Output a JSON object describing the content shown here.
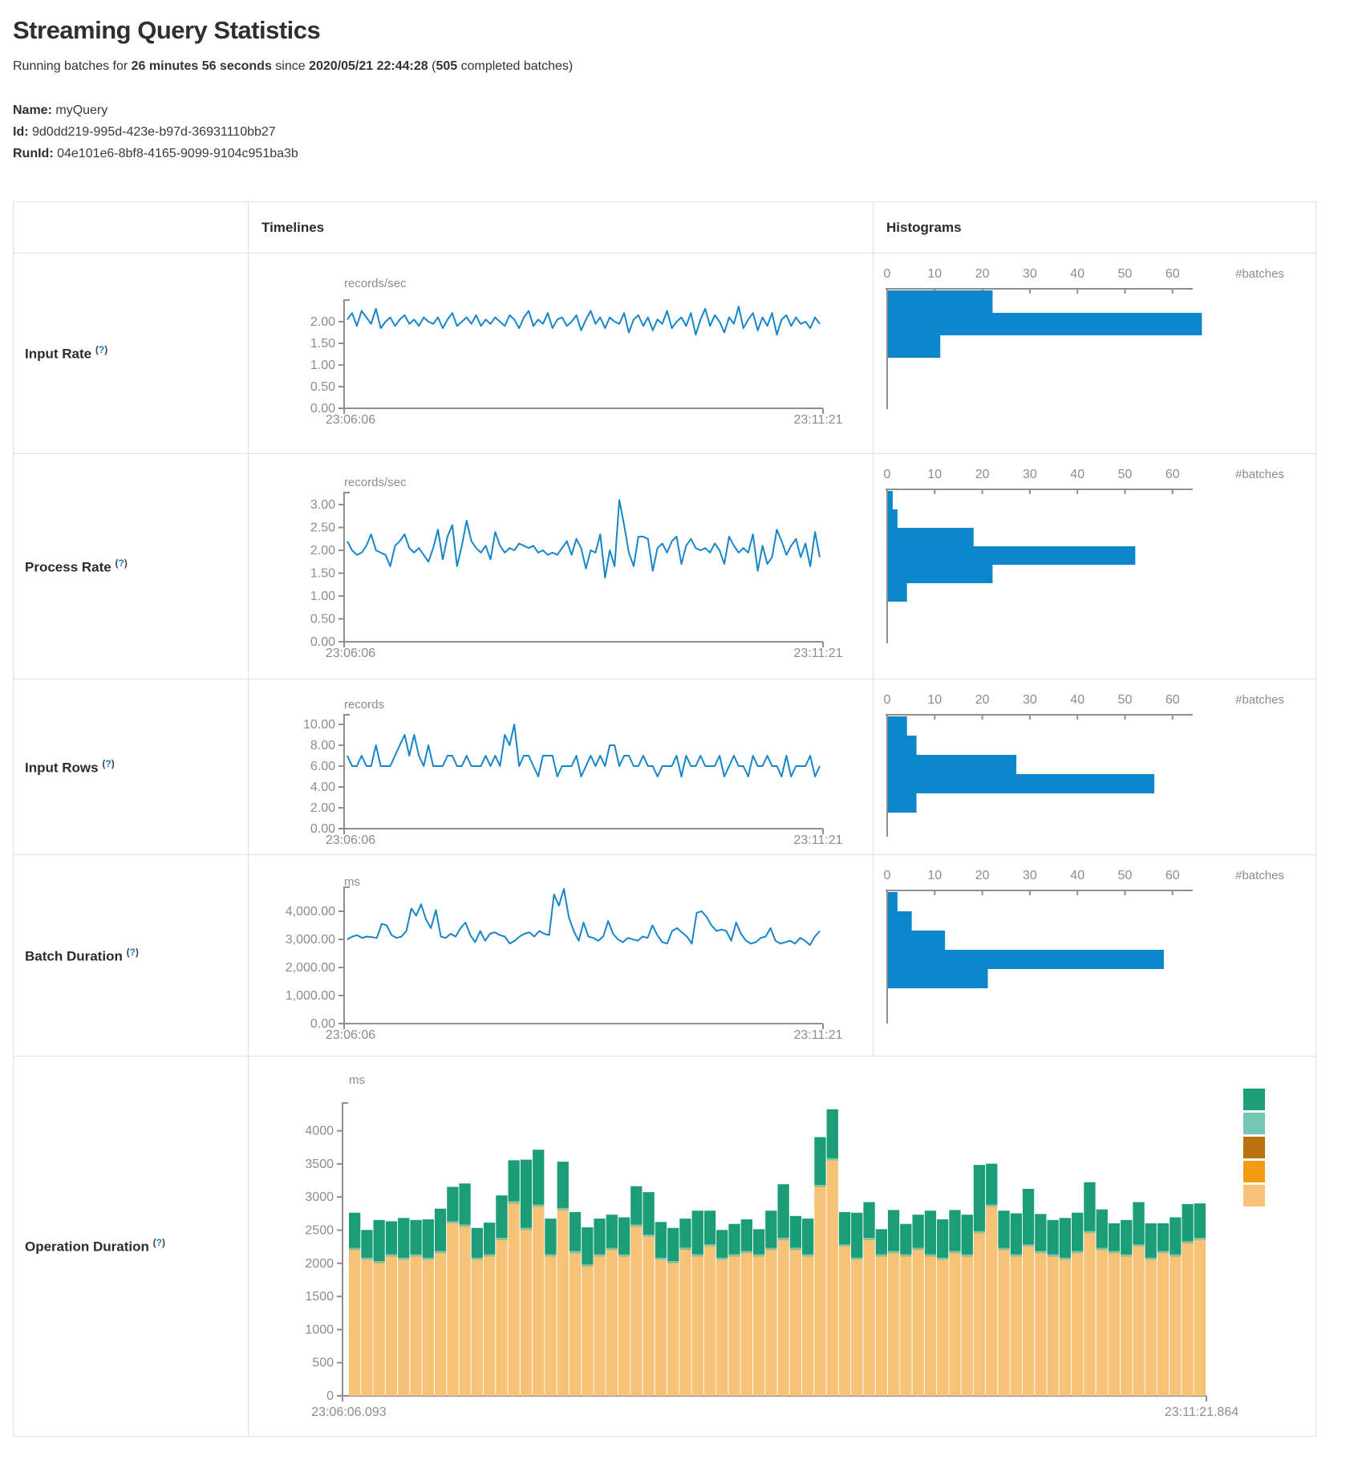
{
  "page": {
    "title": "Streaming Query Statistics",
    "subtitle": {
      "t1": "Running batches for ",
      "b1": "26 minutes 56 seconds",
      "t2": " since ",
      "b2": "2020/05/21 22:44:28",
      "t3": " (",
      "b3": "505",
      "t4": " completed batches)"
    },
    "meta": {
      "name_label": "Name:",
      "name_value": "myQuery",
      "id_label": "Id:",
      "id_value": "9d0dd219-995d-423e-b97d-36931110bb27",
      "runid_label": "RunId:",
      "runid_value": "04e101e6-8bf8-4165-9099-9104c951ba3b"
    }
  },
  "table": {
    "header": {
      "timelines": "Timelines",
      "histograms": "Histograms"
    },
    "help": {
      "open": "(",
      "q": "?",
      "close": ")"
    },
    "rows": [
      {
        "label": "Input Rate"
      },
      {
        "label": "Process Rate"
      },
      {
        "label": "Input Rows"
      },
      {
        "label": "Batch Duration"
      },
      {
        "label": "Operation Duration"
      }
    ]
  },
  "colors": {
    "line_blue": "#1786c9",
    "hist_blue": "#0d87cc",
    "axis_gray": "#8f8f8f",
    "tick_text": "#8c8c8c",
    "teal_green": "#1b9e77",
    "light_teal": "#74c7b4",
    "dark_orange": "#b8720d",
    "orange": "#f39c12",
    "tan": "#f6c277"
  },
  "chart_data": [
    {
      "id": "input-rate-timeline",
      "type": "line",
      "title": "Input Rate",
      "unit": "records/sec",
      "color": "#1786c9",
      "x_start_label": "23:06:06",
      "x_end_label": "23:11:21",
      "ylim": [
        0,
        2.5
      ],
      "yticks": [
        {
          "v": 2.0,
          "label": "2.00"
        },
        {
          "v": 1.5,
          "label": "1.50"
        },
        {
          "v": 1.0,
          "label": "1.00"
        },
        {
          "v": 0.5,
          "label": "0.50"
        },
        {
          "v": 0.0,
          "label": "0.00"
        }
      ],
      "values": [
        2.05,
        2.2,
        1.9,
        2.25,
        2.1,
        1.95,
        2.3,
        1.85,
        2.0,
        2.1,
        1.9,
        2.05,
        2.15,
        1.95,
        2.05,
        1.9,
        2.1,
        2.0,
        1.95,
        2.1,
        1.85,
        2.05,
        2.2,
        1.9,
        2.0,
        2.1,
        1.95,
        2.15,
        1.9,
        2.05,
        1.95,
        2.1,
        2.0,
        1.9,
        2.15,
        2.05,
        1.85,
        2.1,
        2.25,
        1.9,
        2.05,
        1.95,
        2.2,
        1.85,
        2.05,
        2.1,
        1.9,
        2.0,
        2.15,
        1.8,
        2.05,
        2.25,
        1.95,
        2.1,
        1.85,
        2.1,
        2.0,
        1.95,
        2.2,
        1.75,
        2.05,
        2.15,
        1.9,
        2.1,
        1.8,
        2.05,
        1.95,
        2.25,
        1.85,
        2.0,
        2.1,
        1.9,
        2.2,
        1.7,
        2.05,
        2.3,
        1.9,
        2.15,
        2.0,
        1.75,
        2.1,
        1.95,
        2.35,
        1.85,
        2.05,
        2.2,
        1.8,
        2.1,
        1.9,
        2.2,
        1.7,
        2.05,
        2.15,
        1.9,
        2.1,
        1.95,
        2.0,
        1.85,
        2.1,
        1.95
      ]
    },
    {
      "id": "input-rate-histogram",
      "type": "hbar",
      "title": "Input Rate histogram",
      "xlabel": "#batches",
      "color": "#0d87cc",
      "xticks": [
        0,
        10,
        20,
        30,
        40,
        50,
        60
      ],
      "values": [
        22,
        66,
        11
      ]
    },
    {
      "id": "process-rate-timeline",
      "type": "line",
      "title": "Process Rate",
      "unit": "records/sec",
      "color": "#1786c9",
      "x_start_label": "23:06:06",
      "x_end_label": "23:11:21",
      "ylim": [
        0,
        3.25
      ],
      "yticks": [
        {
          "v": 3.0,
          "label": "3.00"
        },
        {
          "v": 2.5,
          "label": "2.50"
        },
        {
          "v": 2.0,
          "label": "2.00"
        },
        {
          "v": 1.5,
          "label": "1.50"
        },
        {
          "v": 1.0,
          "label": "1.00"
        },
        {
          "v": 0.5,
          "label": "0.50"
        },
        {
          "v": 0.0,
          "label": "0.00"
        }
      ],
      "values": [
        2.2,
        2.0,
        1.9,
        1.95,
        2.1,
        2.35,
        2.0,
        1.95,
        1.9,
        1.65,
        2.1,
        2.2,
        2.35,
        2.05,
        1.95,
        2.05,
        1.9,
        1.75,
        2.05,
        2.45,
        1.8,
        2.3,
        2.55,
        1.65,
        2.1,
        2.65,
        2.2,
        2.05,
        1.95,
        2.1,
        1.8,
        2.4,
        2.1,
        1.95,
        2.05,
        2.0,
        2.15,
        2.1,
        2.05,
        2.1,
        1.95,
        2.0,
        1.9,
        1.95,
        1.9,
        2.05,
        2.2,
        1.9,
        2.25,
        2.05,
        1.6,
        2.0,
        1.95,
        2.35,
        1.4,
        2.0,
        1.65,
        3.1,
        2.55,
        1.95,
        1.65,
        2.3,
        2.3,
        2.25,
        1.55,
        2.05,
        2.15,
        1.95,
        2.2,
        2.3,
        1.7,
        2.1,
        2.25,
        2.05,
        2.0,
        2.05,
        1.95,
        2.15,
        2.0,
        1.7,
        2.3,
        2.1,
        1.95,
        2.05,
        1.95,
        2.35,
        1.55,
        2.1,
        1.7,
        1.85,
        2.45,
        2.2,
        1.9,
        2.1,
        2.25,
        1.85,
        2.15,
        1.65,
        2.4,
        1.85
      ]
    },
    {
      "id": "process-rate-histogram",
      "type": "hbar",
      "title": "Process Rate histogram",
      "xlabel": "#batches",
      "color": "#0d87cc",
      "xticks": [
        0,
        10,
        20,
        30,
        40,
        50,
        60
      ],
      "values": [
        1,
        2,
        18,
        52,
        22,
        4
      ]
    },
    {
      "id": "input-rows-timeline",
      "type": "line",
      "title": "Input Rows",
      "unit": "records",
      "color": "#1786c9",
      "x_start_label": "23:06:06",
      "x_end_label": "23:11:21",
      "ylim": [
        0,
        10.8
      ],
      "yticks": [
        {
          "v": 10,
          "label": "10.00"
        },
        {
          "v": 8,
          "label": "8.00"
        },
        {
          "v": 6,
          "label": "6.00"
        },
        {
          "v": 4,
          "label": "4.00"
        },
        {
          "v": 2,
          "label": "2.00"
        },
        {
          "v": 0,
          "label": "0.00"
        }
      ],
      "values": [
        7,
        6,
        6,
        7,
        6,
        6,
        8,
        6,
        6,
        6,
        7,
        8,
        9,
        7,
        9,
        7,
        6,
        8,
        6,
        6,
        6,
        7,
        7,
        6,
        6,
        7,
        6,
        6,
        6,
        7,
        6,
        7,
        6,
        9,
        8,
        10,
        6,
        7,
        7,
        6,
        5,
        7,
        7,
        7,
        5,
        6,
        6,
        6,
        7,
        5,
        6,
        7,
        6,
        7,
        6,
        8,
        8,
        6,
        7,
        7,
        6,
        6,
        7,
        6,
        6,
        5,
        6,
        6,
        6,
        7,
        5,
        7,
        6,
        6,
        7,
        6,
        6,
        6,
        7,
        5,
        6,
        7,
        6,
        6,
        5,
        7,
        6,
        6,
        7,
        6,
        6,
        5,
        7,
        5,
        6,
        6,
        6,
        7,
        5,
        6
      ]
    },
    {
      "id": "input-rows-histogram",
      "type": "hbar",
      "title": "Input Rows histogram",
      "xlabel": "#batches",
      "color": "#0d87cc",
      "xticks": [
        0,
        10,
        20,
        30,
        40,
        50,
        60
      ],
      "values": [
        4,
        6,
        27,
        56,
        6
      ]
    },
    {
      "id": "batch-duration-timeline",
      "type": "line",
      "title": "Batch Duration",
      "unit": "ms",
      "color": "#1786c9",
      "x_start_label": "23:06:06",
      "x_end_label": "23:11:21",
      "ylim": [
        0,
        4900
      ],
      "yticks": [
        {
          "v": 4000,
          "label": "4,000.00"
        },
        {
          "v": 3000,
          "label": "3,000.00"
        },
        {
          "v": 2000,
          "label": "2,000.00"
        },
        {
          "v": 1000,
          "label": "1,000.00"
        },
        {
          "v": 0,
          "label": "0.00"
        }
      ],
      "values": [
        3000,
        3100,
        3150,
        3050,
        3100,
        3080,
        3050,
        3550,
        3500,
        3150,
        3050,
        3100,
        3300,
        4100,
        3850,
        4250,
        3700,
        3400,
        4050,
        3100,
        3050,
        3200,
        3100,
        3400,
        3600,
        3150,
        2900,
        3300,
        2950,
        3200,
        3250,
        3150,
        3100,
        2850,
        2950,
        3100,
        3200,
        3250,
        3100,
        3300,
        3200,
        3150,
        4600,
        4200,
        4800,
        3800,
        3300,
        2950,
        3600,
        3100,
        3050,
        2950,
        3100,
        3650,
        3200,
        3000,
        2900,
        3050,
        3000,
        2950,
        3100,
        3050,
        3500,
        3150,
        2900,
        2850,
        3300,
        3400,
        3250,
        3100,
        2850,
        3950,
        4000,
        3800,
        3500,
        3300,
        3350,
        3300,
        2950,
        3600,
        3200,
        2950,
        2850,
        2900,
        3050,
        3100,
        3400,
        2950,
        2850,
        2900,
        2950,
        2850,
        3050,
        2950,
        2800,
        3100,
        3300
      ]
    },
    {
      "id": "batch-duration-histogram",
      "type": "hbar",
      "title": "Batch Duration histogram",
      "xlabel": "#batches",
      "color": "#0d87cc",
      "xticks": [
        0,
        10,
        20,
        30,
        40,
        50,
        60
      ],
      "values": [
        2,
        5,
        12,
        58,
        21
      ]
    },
    {
      "id": "operation-duration",
      "type": "stacked-bar",
      "title": "Operation Duration",
      "unit": "ms",
      "x_start_label": "23:06:06.093",
      "x_end_label": "23:11:21.864",
      "ylim": [
        0,
        4500
      ],
      "yticks": [
        {
          "v": 4000,
          "label": "4000"
        },
        {
          "v": 3500,
          "label": "3500"
        },
        {
          "v": 3000,
          "label": "3000"
        },
        {
          "v": 2500,
          "label": "2500"
        },
        {
          "v": 2000,
          "label": "2000"
        },
        {
          "v": 1500,
          "label": "1500"
        },
        {
          "v": 1000,
          "label": "1000"
        },
        {
          "v": 500,
          "label": "500"
        },
        {
          "v": 0,
          "label": "0"
        }
      ],
      "legend": [
        {
          "name": "teal-green",
          "color": "#1b9e77"
        },
        {
          "name": "light-teal",
          "color": "#74c7b4"
        },
        {
          "name": "dark-orange",
          "color": "#b8720d"
        },
        {
          "name": "orange",
          "color": "#f39c12"
        },
        {
          "name": "tan",
          "color": "#f6c277"
        }
      ],
      "series": [
        {
          "name": "tan",
          "color": "#f6c277",
          "values": [
            2200,
            2050,
            2000,
            2100,
            2050,
            2100,
            2050,
            2150,
            2600,
            2550,
            2050,
            2100,
            2350,
            2900,
            2500,
            2850,
            2100,
            2800,
            2150,
            1950,
            2100,
            2200,
            2100,
            2550,
            2400,
            2050,
            2000,
            2200,
            2100,
            2250,
            2050,
            2100,
            2150,
            2100,
            2200,
            2350,
            2200,
            2100,
            3150,
            3550,
            2250,
            2050,
            2350,
            2100,
            2150,
            2100,
            2200,
            2100,
            2050,
            2150,
            2100,
            2450,
            2850,
            2200,
            2100,
            2250,
            2150,
            2100,
            2050,
            2150,
            2450,
            2200,
            2150,
            2100,
            2250,
            2050,
            2150,
            2100,
            2300,
            2350
          ]
        },
        {
          "name": "orange",
          "color": "#f39c12",
          "const": 6
        },
        {
          "name": "dark-orange",
          "color": "#b8720d",
          "const": 4
        },
        {
          "name": "light-teal",
          "color": "#74c7b4",
          "const": 24
        },
        {
          "name": "teal-green",
          "color": "#1b9e77",
          "values": [
            530,
            420,
            620,
            500,
            600,
            520,
            580,
            640,
            520,
            620,
            450,
            480,
            640,
            620,
            1030,
            830,
            540,
            700,
            590,
            560,
            540,
            500,
            560,
            580,
            640,
            540,
            500,
            440,
            660,
            510,
            420,
            460,
            480,
            380,
            560,
            810,
            480,
            540,
            720,
            740,
            490,
            680,
            540,
            380,
            620,
            460,
            500,
            660,
            580,
            620,
            600,
            1000,
            620,
            560,
            620,
            840,
            560,
            520,
            600,
            580,
            740,
            580,
            420,
            520,
            640,
            520,
            420,
            560,
            560,
            520
          ]
        }
      ]
    }
  ]
}
